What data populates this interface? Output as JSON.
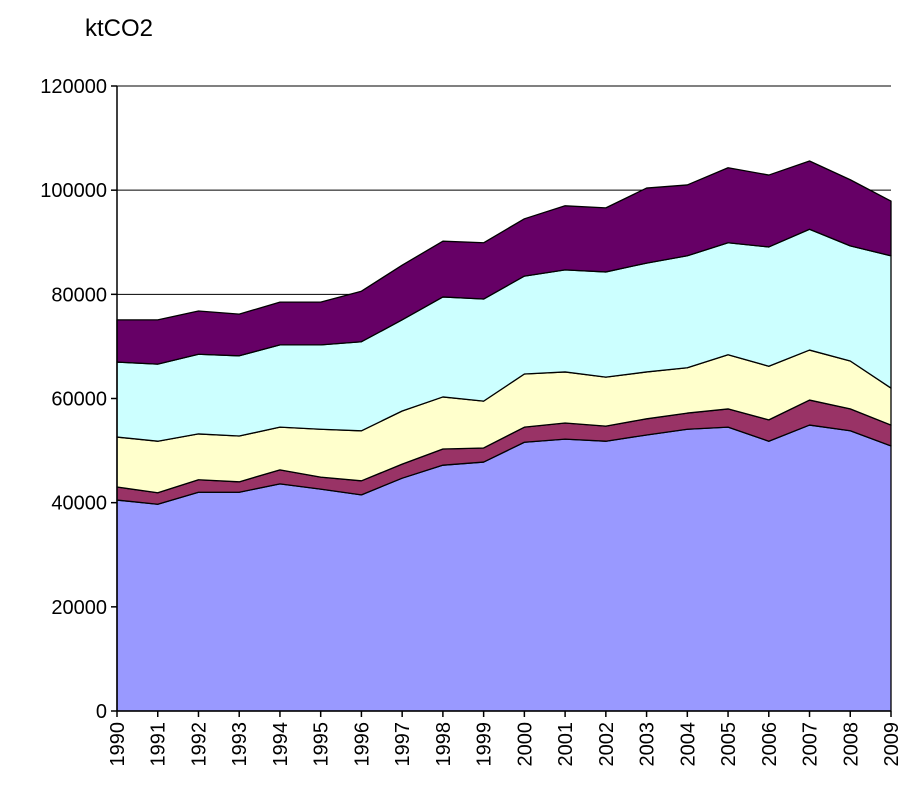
{
  "chart_data": {
    "type": "stacked_area",
    "title": "ktCO2",
    "categories": [
      "1990",
      "1991",
      "1992",
      "1993",
      "1994",
      "1995",
      "1996",
      "1997",
      "1998",
      "1999",
      "2000",
      "2001",
      "2002",
      "2003",
      "2004",
      "2005",
      "2006",
      "2007",
      "2008",
      "2009"
    ],
    "series": [
      {
        "color": "#9999ff",
        "values": [
          40500,
          39700,
          42000,
          42000,
          43600,
          42600,
          41500,
          44700,
          47200,
          47800,
          51600,
          52200,
          51800,
          53000,
          54100,
          54500,
          51800,
          54900,
          53800,
          50900
        ]
      },
      {
        "color": "#993366",
        "values": [
          2500,
          2200,
          2400,
          2000,
          2700,
          2300,
          2700,
          2700,
          3100,
          2700,
          2900,
          3100,
          2900,
          3100,
          3100,
          3500,
          4100,
          4800,
          4200,
          4000
        ]
      },
      {
        "color": "#ffffcc",
        "values": [
          9600,
          9900,
          8800,
          8800,
          8200,
          9200,
          9600,
          10200,
          10000,
          9000,
          10200,
          9800,
          9400,
          9000,
          8700,
          10400,
          10300,
          9600,
          9200,
          7100
        ]
      },
      {
        "color": "#ccffff",
        "values": [
          14400,
          14800,
          15300,
          15400,
          15800,
          16200,
          17100,
          17500,
          19200,
          19600,
          18800,
          19600,
          20200,
          20900,
          21500,
          21500,
          22900,
          23200,
          22100,
          25400
        ]
      },
      {
        "color": "#660066",
        "values": [
          8100,
          8500,
          8300,
          8000,
          8200,
          8200,
          9700,
          10500,
          10700,
          10800,
          11000,
          12300,
          12300,
          14400,
          13600,
          14400,
          13800,
          13100,
          12700,
          10500
        ]
      }
    ],
    "ylim": [
      0,
      120000
    ],
    "yticks": [
      0,
      20000,
      40000,
      60000,
      80000,
      100000,
      120000
    ],
    "grid": true
  }
}
